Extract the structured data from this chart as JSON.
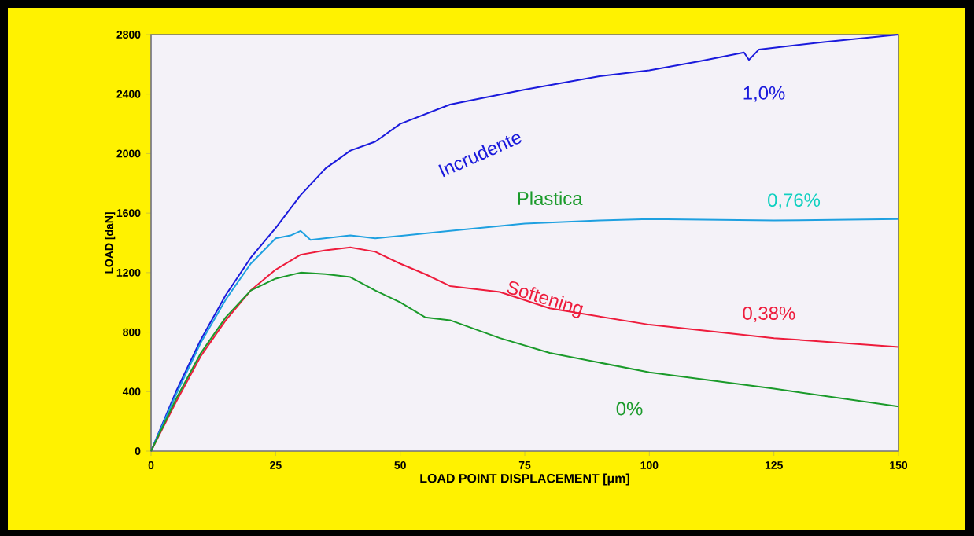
{
  "chart_data": {
    "type": "line",
    "xlabel": "LOAD POINT DISPLACEMENT [μm]",
    "ylabel": "LOAD [daN]",
    "xlim": [
      0,
      150
    ],
    "xticks": [
      0,
      25,
      50,
      75,
      100,
      125,
      150
    ],
    "ylim": [
      0,
      2800
    ],
    "yticks": [
      0,
      400,
      800,
      1200,
      1600,
      2000,
      2400,
      2800
    ],
    "grid": false,
    "marker": "none",
    "line_style": "solid",
    "series": [
      {
        "color": "#1a1adc",
        "x": [
          0,
          5,
          10,
          15,
          20,
          25,
          30,
          35,
          40,
          45,
          50,
          60,
          75,
          90,
          100,
          110,
          119,
          120,
          122,
          135,
          150
        ],
        "values": [
          0,
          400,
          750,
          1050,
          1300,
          1500,
          1720,
          1900,
          2020,
          2080,
          2200,
          2330,
          2430,
          2520,
          2560,
          2620,
          2680,
          2630,
          2700,
          2750,
          2800
        ]
      },
      {
        "color": "#1ea0e0",
        "x": [
          0,
          5,
          10,
          15,
          20,
          25,
          28,
          30,
          32,
          40,
          45,
          60,
          75,
          90,
          100,
          125,
          150
        ],
        "values": [
          0,
          380,
          730,
          1020,
          1260,
          1430,
          1450,
          1480,
          1420,
          1450,
          1430,
          1480,
          1530,
          1550,
          1560,
          1550,
          1560
        ]
      },
      {
        "color": "#ee1c3c",
        "x": [
          0,
          5,
          10,
          15,
          20,
          25,
          30,
          35,
          40,
          45,
          50,
          55,
          60,
          70,
          80,
          100,
          125,
          150
        ],
        "values": [
          0,
          330,
          640,
          880,
          1080,
          1220,
          1320,
          1350,
          1370,
          1340,
          1260,
          1190,
          1110,
          1070,
          960,
          850,
          760,
          700
        ]
      },
      {
        "color": "#1a9a2a",
        "x": [
          0,
          5,
          10,
          15,
          20,
          25,
          30,
          35,
          40,
          45,
          50,
          55,
          60,
          70,
          80,
          100,
          125,
          150
        ],
        "values": [
          0,
          350,
          660,
          900,
          1080,
          1160,
          1200,
          1190,
          1170,
          1080,
          1000,
          900,
          880,
          760,
          660,
          530,
          420,
          300
        ]
      }
    ],
    "annotations": [
      "Incrudente",
      "Plastica",
      "Softening",
      "1,0%",
      "0,76%",
      "0,38%",
      "0%"
    ]
  }
}
